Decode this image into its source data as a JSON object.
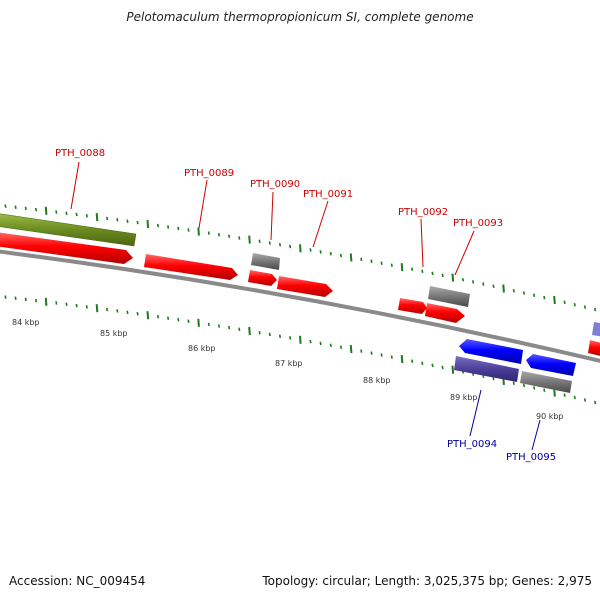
{
  "title": "Pelotomaculum thermopropionicum SI, complete genome",
  "footer": {
    "accession": "Accession: NC_009454",
    "stats": "Topology: circular; Length: 3,025,375 bp; Genes: 2,975"
  },
  "colors": {
    "forward_cds": "#ff0000",
    "reverse_cds": "#0000ff",
    "reverse_cds_dark": "#4b3f99",
    "rna_gray": "#777777",
    "olive_feature": "#6b8c1f",
    "tick_green": "#1f7a1f",
    "label_red": "#cc0000",
    "label_blue": "#00009c"
  },
  "kbp_labels": [
    "84 kbp",
    "85 kbp",
    "86 kbp",
    "87 kbp",
    "88 kbp",
    "89 kbp",
    "90 kbp"
  ],
  "gene_labels": {
    "pth_0088": "PTH_0088",
    "pth_0089": "PTH_0089",
    "pth_0090": "PTH_0090",
    "pth_0091": "PTH_0091",
    "pth_0092": "PTH_0092",
    "pth_0093": "PTH_0093",
    "pth_0094": "PTH_0094",
    "pth_0095": "PTH_0095"
  }
}
